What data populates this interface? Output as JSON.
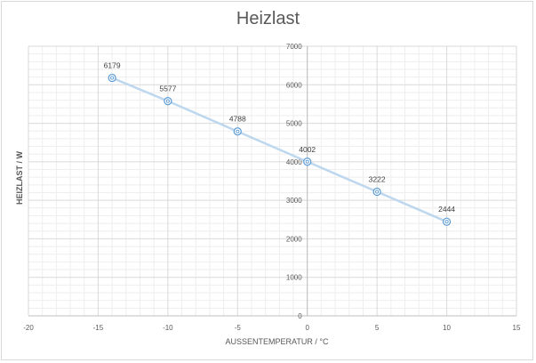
{
  "chart_data": {
    "type": "scatter",
    "title": "Heizlast",
    "xlabel": "AUSSENTEMPERATUR / °C",
    "ylabel": "HEIZLAST / W",
    "xlim": [
      -20,
      15
    ],
    "ylim": [
      0,
      7000
    ],
    "xticks": [
      -20,
      -15,
      -10,
      -5,
      0,
      5,
      10,
      15
    ],
    "yticks": [
      0,
      1000,
      2000,
      3000,
      4000,
      5000,
      6000,
      7000
    ],
    "grid": true,
    "series": [
      {
        "x": [
          -14,
          -10,
          -5,
          0,
          5,
          10
        ],
        "y": [
          6179,
          5577,
          4788,
          4002,
          3222,
          2444
        ],
        "labels": [
          "6179",
          "5577",
          "4788",
          "4002",
          "3222",
          "2444"
        ]
      }
    ],
    "colors": {
      "line": "#bdd7ee",
      "marker": "#5b9bd5",
      "grid_major": "#d9d9d9",
      "grid_minor": "#eeeeee"
    }
  }
}
